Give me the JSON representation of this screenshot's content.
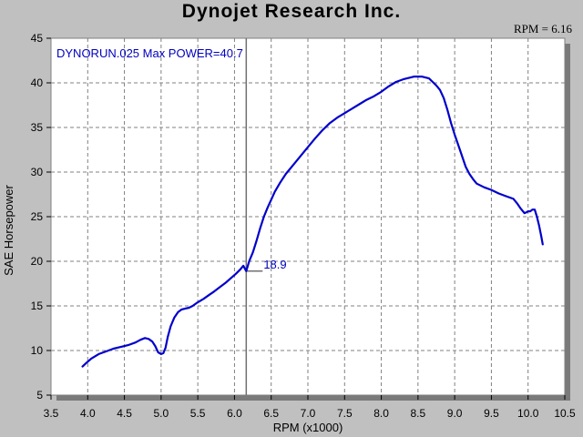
{
  "header": {
    "title": "Dynojet  Research  Inc.",
    "cursor_readout": "RPM = 6.16"
  },
  "chart_data": {
    "type": "line",
    "title": "Dynojet  Research  Inc.",
    "xlabel": "RPM (x1000)",
    "ylabel": "SAE Horsepower",
    "xlim": [
      3.5,
      10.5
    ],
    "ylim": [
      5,
      45
    ],
    "xticks": [
      "3.5",
      "4.0",
      "4.5",
      "5.0",
      "5.5",
      "6.0",
      "6.5",
      "7.0",
      "7.5",
      "8.0",
      "8.5",
      "9.0",
      "9.5",
      "10.0",
      "10.5"
    ],
    "yticks": [
      "5",
      "10",
      "15",
      "20",
      "25",
      "30",
      "35",
      "40",
      "45"
    ],
    "grid": true,
    "colors": {
      "line": "#0000cc",
      "plot_bg": "#ffffff",
      "grid": "#808080",
      "cursor": "#707070",
      "annotation": "#0000c0"
    },
    "run_label": "DYNORUN.025  Max POWER=40.7",
    "cursor": {
      "x": 6.16,
      "value_label": "18.9",
      "y": 18.9
    },
    "series": [
      {
        "x": [
          3.93,
          3.98,
          4.05,
          4.15,
          4.25,
          4.35,
          4.45,
          4.55,
          4.65,
          4.72,
          4.78,
          4.83,
          4.88,
          4.92,
          4.96,
          5.0,
          5.03,
          5.06,
          5.09,
          5.13,
          5.18,
          5.23,
          5.28,
          5.33,
          5.38,
          5.43,
          5.48,
          5.52,
          5.58,
          5.65,
          5.72,
          5.8,
          5.88,
          5.95,
          6.02,
          6.08,
          6.12,
          6.16,
          6.2,
          6.25,
          6.3,
          6.35,
          6.4,
          6.45,
          6.5,
          6.55,
          6.62,
          6.7,
          6.8,
          6.9,
          7.0,
          7.1,
          7.2,
          7.3,
          7.4,
          7.5,
          7.6,
          7.7,
          7.8,
          7.9,
          8.0,
          8.1,
          8.2,
          8.3,
          8.4,
          8.45,
          8.5,
          8.55,
          8.6,
          8.65,
          8.7,
          8.75,
          8.8,
          8.85,
          8.9,
          8.95,
          9.0,
          9.05,
          9.1,
          9.15,
          9.2,
          9.25,
          9.3,
          9.4,
          9.5,
          9.6,
          9.7,
          9.8,
          9.85,
          9.9,
          9.95,
          9.98,
          10.0,
          10.03,
          10.06,
          10.09,
          10.12,
          10.15,
          10.18,
          10.2
        ],
        "values": [
          8.2,
          8.6,
          9.1,
          9.6,
          9.9,
          10.2,
          10.4,
          10.6,
          10.9,
          11.2,
          11.4,
          11.3,
          11.0,
          10.5,
          9.8,
          9.6,
          9.7,
          10.3,
          11.5,
          12.7,
          13.7,
          14.3,
          14.6,
          14.7,
          14.8,
          15.0,
          15.3,
          15.5,
          15.8,
          16.2,
          16.6,
          17.1,
          17.6,
          18.1,
          18.6,
          19.1,
          19.5,
          18.9,
          20.0,
          21.0,
          22.3,
          23.7,
          25.0,
          26.0,
          26.9,
          27.8,
          28.8,
          29.8,
          30.8,
          31.8,
          32.8,
          33.8,
          34.7,
          35.5,
          36.1,
          36.6,
          37.1,
          37.6,
          38.1,
          38.5,
          39.0,
          39.6,
          40.1,
          40.4,
          40.6,
          40.7,
          40.7,
          40.7,
          40.6,
          40.5,
          40.1,
          39.7,
          39.2,
          38.3,
          37.0,
          35.5,
          34.2,
          33.0,
          31.8,
          30.6,
          29.8,
          29.2,
          28.7,
          28.3,
          28.0,
          27.6,
          27.3,
          27.0,
          26.5,
          25.9,
          25.4,
          25.5,
          25.6,
          25.6,
          25.8,
          25.8,
          25.0,
          24.0,
          22.8,
          21.9
        ]
      }
    ]
  }
}
